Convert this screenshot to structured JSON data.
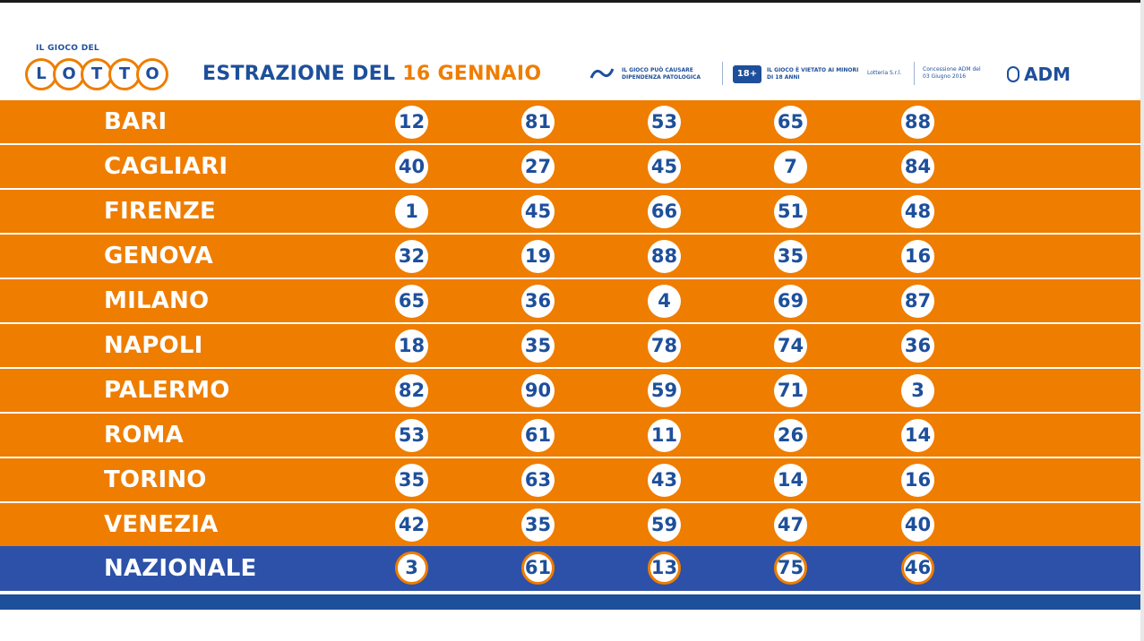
{
  "header": {
    "logo_top": "IL GIOCO DEL",
    "logo_letters": [
      "L",
      "O",
      "T",
      "T",
      "O"
    ],
    "title_prefix": "ESTRAZIONE DEL ",
    "title_date": "16 GENNAIO",
    "notice1_icon": "",
    "notice1_text": "IL GIOCO PUÒ CAUSARE DIPENDENZA PATOLOGICA",
    "notice2_icon": "18+",
    "notice2_text": "IL GIOCO È VIETATO AI MINORI DI 18 ANNI",
    "lotteria_text": "Lotteria S.r.l.",
    "concession_text": "Concessione ADM del 03 Giugno 2016",
    "adm_text": "ADM"
  },
  "draws": [
    {
      "city": "BARI",
      "numbers": [
        "12",
        "81",
        "53",
        "65",
        "88"
      ]
    },
    {
      "city": "CAGLIARI",
      "numbers": [
        "40",
        "27",
        "45",
        "7",
        "84"
      ]
    },
    {
      "city": "FIRENZE",
      "numbers": [
        "1",
        "45",
        "66",
        "51",
        "48"
      ]
    },
    {
      "city": "GENOVA",
      "numbers": [
        "32",
        "19",
        "88",
        "35",
        "16"
      ]
    },
    {
      "city": "MILANO",
      "numbers": [
        "65",
        "36",
        "4",
        "69",
        "87"
      ]
    },
    {
      "city": "NAPOLI",
      "numbers": [
        "18",
        "35",
        "78",
        "74",
        "36"
      ]
    },
    {
      "city": "PALERMO",
      "numbers": [
        "82",
        "90",
        "59",
        "71",
        "3"
      ]
    },
    {
      "city": "ROMA",
      "numbers": [
        "53",
        "61",
        "11",
        "26",
        "14"
      ]
    },
    {
      "city": "TORINO",
      "numbers": [
        "35",
        "63",
        "43",
        "14",
        "16"
      ]
    },
    {
      "city": "VENEZIA",
      "numbers": [
        "42",
        "35",
        "59",
        "47",
        "40"
      ]
    },
    {
      "city": "NAZIONALE",
      "numbers": [
        "3",
        "61",
        "13",
        "75",
        "46"
      ]
    }
  ],
  "colors": {
    "orange": "#ef7d00",
    "blue": "#1e4f9a",
    "nazionale_blue": "#2d51a8"
  },
  "icons": {
    "logo": "lotto-logo",
    "emblem": "republic-emblem-icon"
  }
}
